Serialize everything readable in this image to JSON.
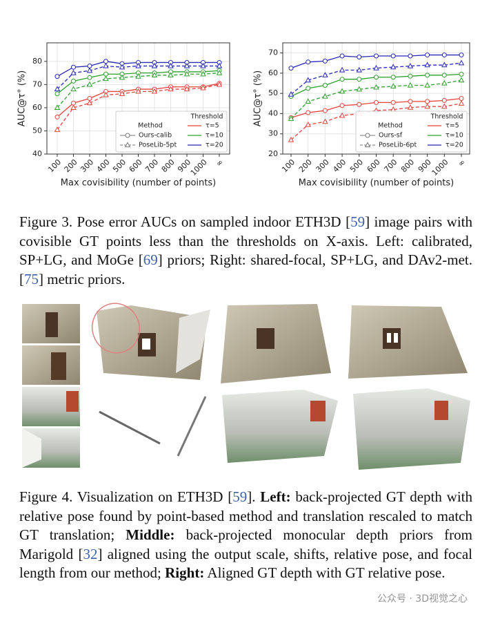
{
  "chart_data": [
    {
      "type": "line",
      "ylabel": "AUC@τ° (%)",
      "xlabel": "Max covisibility (number of points)",
      "categories": [
        "100",
        "200",
        "300",
        "400",
        "500",
        "600",
        "700",
        "800",
        "900",
        "1000",
        "∞"
      ],
      "ylim": [
        40,
        88
      ],
      "yticks": [
        40,
        50,
        60,
        70,
        80
      ],
      "grid": true,
      "method_title": "Method",
      "threshold_title": "Threshold",
      "thresholds": [
        {
          "name": "τ=5",
          "color": "#e8413a"
        },
        {
          "name": "τ=10",
          "color": "#2ca02c"
        },
        {
          "name": "τ=20",
          "color": "#2525b8"
        }
      ],
      "methods": [
        {
          "name": "Ours-calib",
          "marker": "circle",
          "dash": "solid",
          "series": [
            {
              "values": [
                56,
                62,
                64,
                67,
                67,
                68,
                68,
                69,
                69,
                69,
                70.5
              ]
            },
            {
              "values": [
                66,
                71.5,
                73,
                74.5,
                74.5,
                75,
                75,
                75.5,
                75.5,
                75.5,
                76
              ]
            },
            {
              "values": [
                73.5,
                77.5,
                78,
                80,
                79,
                79.5,
                79.5,
                79.5,
                79.5,
                79.5,
                79.5
              ]
            }
          ]
        },
        {
          "name": "PoseLib-5pt",
          "marker": "triangle",
          "dash": "dashed",
          "series": [
            {
              "values": [
                50.5,
                60,
                62,
                65.5,
                66,
                67,
                67,
                68,
                68,
                68.5,
                70
              ]
            },
            {
              "values": [
                60,
                68,
                70,
                72.5,
                73,
                73.5,
                74,
                74,
                74.5,
                74.5,
                75
              ]
            },
            {
              "values": [
                68,
                75,
                76,
                78,
                77.5,
                78,
                78,
                78,
                78,
                78,
                78
              ]
            }
          ]
        }
      ]
    },
    {
      "type": "line",
      "ylabel": "AUC@τ° (%)",
      "xlabel": "Max covisibility (number of points)",
      "categories": [
        "100",
        "200",
        "300",
        "400",
        "500",
        "600",
        "700",
        "800",
        "900",
        "1000",
        "∞"
      ],
      "ylim": [
        20,
        75
      ],
      "yticks": [
        20,
        30,
        40,
        50,
        60,
        70
      ],
      "grid": true,
      "method_title": "Method",
      "threshold_title": "Threshold",
      "thresholds": [
        {
          "name": "τ=5",
          "color": "#e8413a"
        },
        {
          "name": "τ=10",
          "color": "#2ca02c"
        },
        {
          "name": "τ=20",
          "color": "#2525b8"
        }
      ],
      "methods": [
        {
          "name": "Ours-sf",
          "marker": "circle",
          "dash": "solid",
          "series": [
            {
              "values": [
                38,
                40.5,
                41.5,
                44,
                44.5,
                45.5,
                45.5,
                46,
                46,
                46.5,
                47.5
              ]
            },
            {
              "values": [
                48.5,
                52.5,
                54,
                57,
                57,
                58,
                58,
                58.5,
                59,
                59,
                59.5
              ]
            },
            {
              "values": [
                62.5,
                65.5,
                66,
                68.5,
                68,
                68.5,
                68.5,
                68.5,
                69,
                69,
                69
              ]
            }
          ]
        },
        {
          "name": "PoseLib-6pt",
          "marker": "triangle",
          "dash": "dashed",
          "series": [
            {
              "values": [
                27,
                34.5,
                36,
                39,
                40,
                41.5,
                42,
                43,
                43.5,
                43.5,
                45
              ]
            },
            {
              "values": [
                37.5,
                46,
                48.5,
                51,
                52,
                53,
                53.5,
                54,
                54,
                55,
                56.5
              ]
            },
            {
              "values": [
                49.5,
                56.5,
                59,
                61.5,
                61.5,
                62.5,
                63,
                63.5,
                64,
                64,
                65
              ]
            }
          ]
        }
      ]
    }
  ],
  "captions": [
    [
      {
        "text": "Figure 3. Pose error AUCs on sampled indoor ETH3D ["
      },
      {
        "text": "59",
        "link": true
      },
      {
        "text": "] image pairs with covisible GT points less than the thresholds on X-axis. Left: calibrated, SP+LG, and MoGe ["
      },
      {
        "text": "69",
        "link": true
      },
      {
        "text": "] priors; Right: shared-focal, SP+LG, and DAv2-met.["
      },
      {
        "text": "75",
        "link": true
      },
      {
        "text": "] metric priors."
      }
    ],
    [
      {
        "text": "Figure 4. Visualization on ETH3D ["
      },
      {
        "text": "59",
        "link": true
      },
      {
        "text": "]. "
      },
      {
        "text": "Left:",
        "bold": true
      },
      {
        "text": " back-projected GT depth with relative pose found by point-based method and translation rescaled to match GT translation; "
      },
      {
        "text": "Middle:",
        "bold": true
      },
      {
        "text": " back-projected monocular depth priors from Marigold ["
      },
      {
        "text": "32",
        "link": true
      },
      {
        "text": "] aligned using the output scale, shifts, relative pose, and focal length from our method; "
      },
      {
        "text": "Right:",
        "bold": true
      },
      {
        "text": " Aligned GT depth with GT relative pose."
      }
    ]
  ],
  "watermark": "公众号 · 3D视觉之心"
}
